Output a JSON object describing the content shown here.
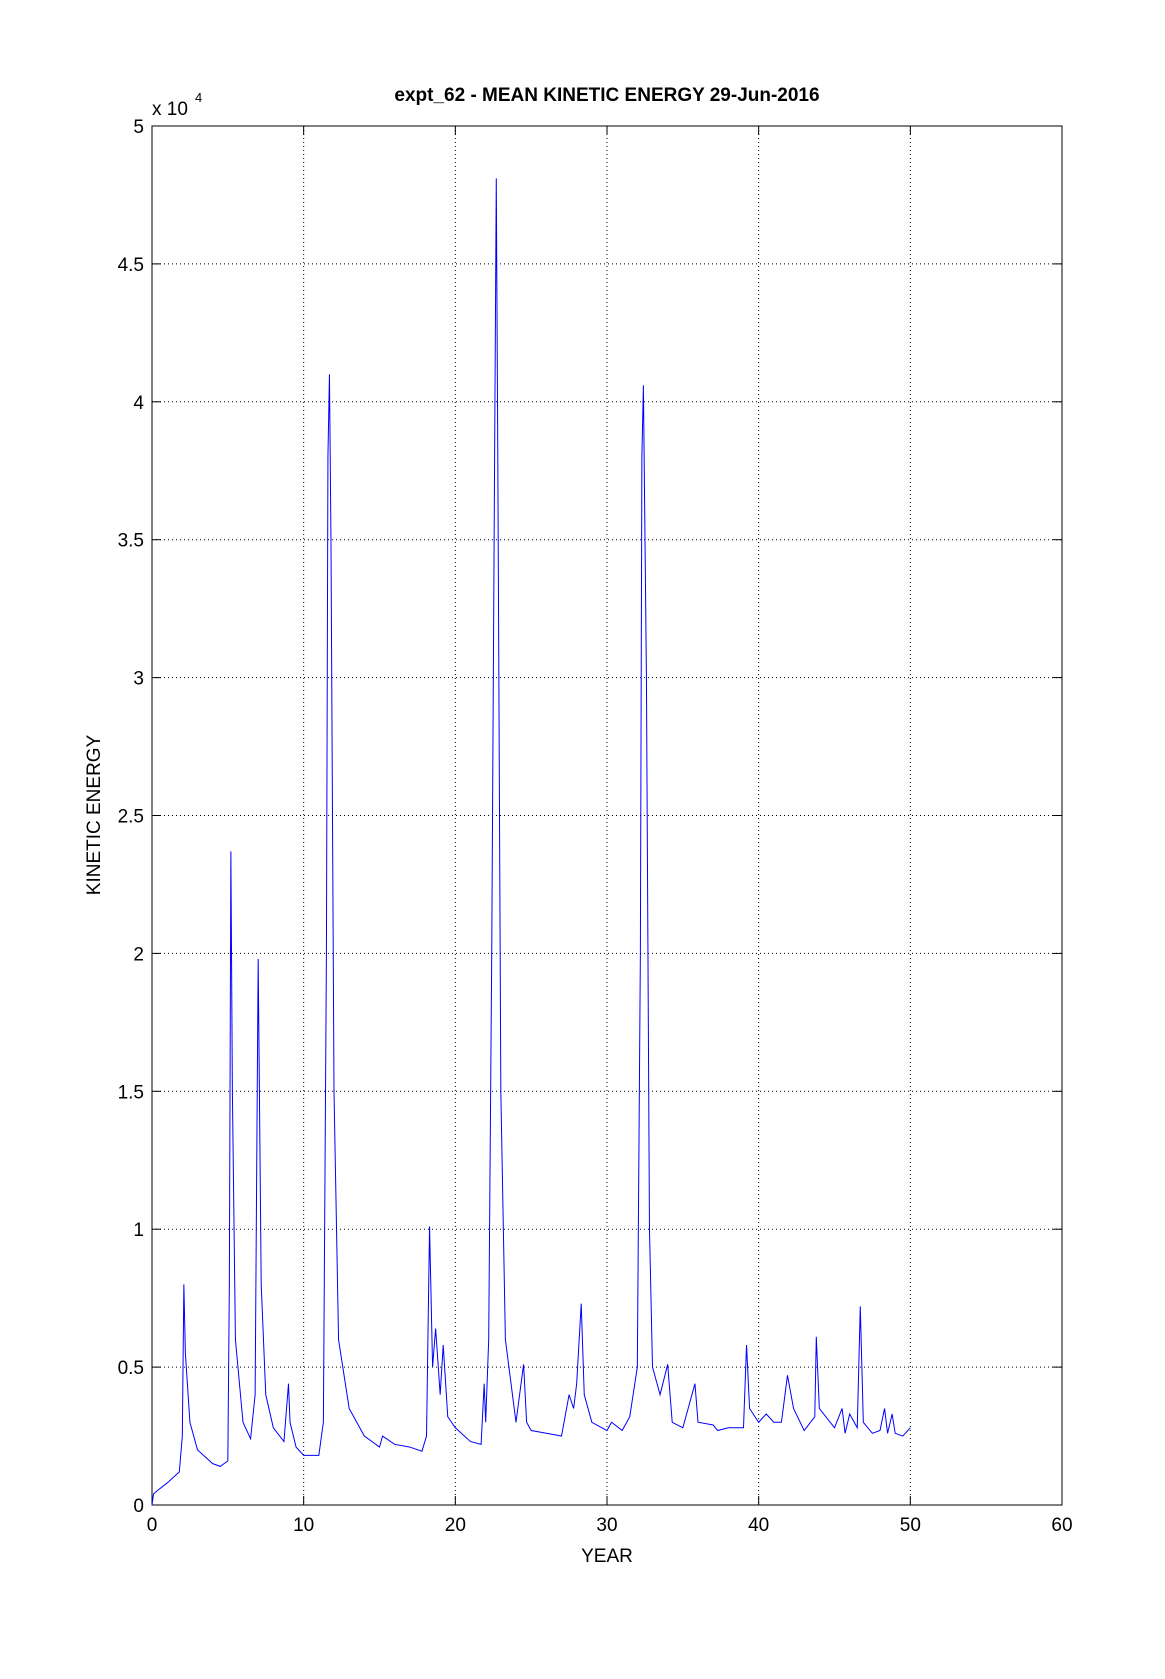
{
  "chart_data": {
    "type": "line",
    "title": "expt_62 - MEAN KINETIC ENERGY 29-Jun-2016",
    "x_label": "YEAR",
    "y_label": "KINETIC ENERGY",
    "y_multiplier": "x 10",
    "y_multiplier_exponent": "4",
    "grid": true,
    "xlim": [
      0,
      60
    ],
    "xticks": [
      0,
      10,
      20,
      30,
      40,
      50,
      60
    ],
    "ylim": [
      0,
      50000
    ],
    "yticks": [
      0,
      {
        "value": 5000,
        "label": "0.5"
      },
      {
        "value": 10000,
        "label": "1"
      },
      {
        "value": 15000,
        "label": "1.5"
      },
      {
        "value": 20000,
        "label": "2"
      },
      {
        "value": 25000,
        "label": "2.5"
      },
      {
        "value": 30000,
        "label": "3"
      },
      {
        "value": 35000,
        "label": "3.5"
      },
      {
        "value": 40000,
        "label": "4"
      },
      {
        "value": 45000,
        "label": "4.5"
      },
      {
        "value": 50000,
        "label": "5"
      }
    ],
    "x": [
      0,
      0.1,
      0.3,
      1.0,
      1.8,
      2.0,
      2.1,
      2.2,
      2.5,
      3,
      4,
      4.5,
      5.0,
      5.1,
      5.2,
      5.3,
      5.5,
      6,
      6.5,
      6.8,
      7.0,
      7.2,
      7.5,
      8,
      8.7,
      9.0,
      9.1,
      9.5,
      10,
      11,
      11.3,
      11.5,
      11.6,
      11.7,
      11.8,
      12,
      12.3,
      13,
      14,
      15,
      15.2,
      16,
      17,
      17.8,
      18.1,
      18.3,
      18.5,
      18.7,
      19,
      19.2,
      19.5,
      20,
      21,
      21.7,
      21.9,
      22,
      22.2,
      22.4,
      22.6,
      22.7,
      22.8,
      23,
      23.3,
      24,
      24.5,
      24.7,
      25,
      26,
      27,
      27.5,
      27.8,
      28,
      28.3,
      28.5,
      29,
      30,
      30.3,
      31,
      31.5,
      32,
      32.2,
      32.3,
      32.4,
      32.6,
      32.8,
      33,
      33.5,
      34,
      34.3,
      35,
      35.8,
      36,
      37,
      37.3,
      38,
      39,
      39.2,
      39.4,
      40,
      40.5,
      41,
      41.5,
      41.9,
      42.3,
      43,
      43.7,
      43.8,
      44,
      45,
      45.5,
      45.7,
      46,
      46.5,
      46.7,
      46.9,
      47.5,
      48,
      48.3,
      48.5,
      48.8,
      49,
      49.5,
      50
    ],
    "series": [
      {
        "color": "#0000ff",
        "values": [
          0,
          400,
          500,
          800,
          1200,
          2500,
          8000,
          5500,
          3000,
          2000,
          1500,
          1400,
          1600,
          8000,
          23700,
          15000,
          6000,
          3000,
          2400,
          4000,
          19800,
          8000,
          4000,
          2800,
          2300,
          4400,
          3000,
          2100,
          1800,
          1800,
          3000,
          20000,
          38000,
          41000,
          35000,
          15000,
          6000,
          3500,
          2500,
          2100,
          2500,
          2200,
          2100,
          1950,
          2500,
          10100,
          5000,
          6400,
          4000,
          5800,
          3200,
          2800,
          2300,
          2200,
          4400,
          3000,
          6000,
          20000,
          39000,
          48100,
          38000,
          15000,
          6000,
          3000,
          5100,
          3000,
          2700,
          2600,
          2500,
          4000,
          3500,
          4400,
          7300,
          4000,
          3000,
          2700,
          3000,
          2700,
          3200,
          5000,
          20000,
          38000,
          40600,
          30000,
          10000,
          5000,
          4000,
          5100,
          3000,
          2800,
          4400,
          3000,
          2900,
          2700,
          2800,
          2800,
          5800,
          3500,
          3000,
          3300,
          3000,
          3000,
          4700,
          3500,
          2700,
          3200,
          6100,
          3500,
          2800,
          3500,
          2600,
          3300,
          2800,
          7200,
          3000,
          2600,
          2700,
          3500,
          2600,
          3300,
          2600,
          2500,
          2800
        ]
      }
    ]
  }
}
